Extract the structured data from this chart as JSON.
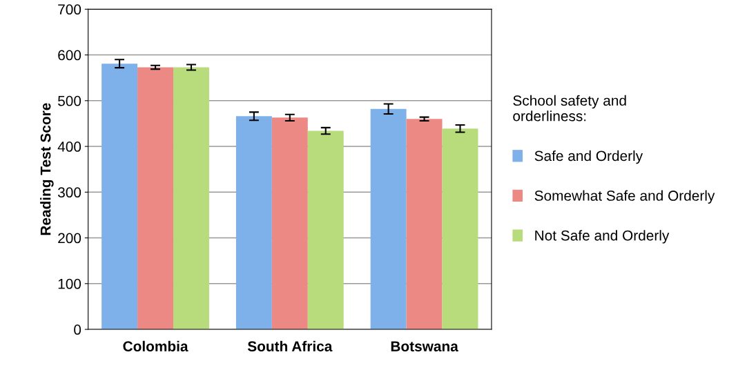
{
  "chart_data": {
    "type": "bar",
    "ylabel": "Reading Test Score",
    "legend_title": "School safety and\norderliness:",
    "categories": [
      "Colombia",
      "South Africa",
      "Botswana"
    ],
    "series": [
      {
        "name": "Safe and Orderly",
        "color": "#7eb0ea",
        "values": [
          581,
          466,
          482
        ],
        "errors": [
          9,
          9,
          11
        ]
      },
      {
        "name": "Somewhat Safe and Orderly",
        "color": "#ec8985",
        "values": [
          573,
          463,
          460
        ],
        "errors": [
          4,
          7,
          4
        ]
      },
      {
        "name": "Not Safe and Orderly",
        "color": "#b8dc7c",
        "values": [
          573,
          434,
          439
        ],
        "errors": [
          6,
          7,
          8
        ]
      }
    ],
    "ylim": [
      0,
      700
    ],
    "yticks": [
      0,
      100,
      200,
      300,
      400,
      500,
      600,
      700
    ],
    "grid": "y",
    "legend": "right"
  }
}
